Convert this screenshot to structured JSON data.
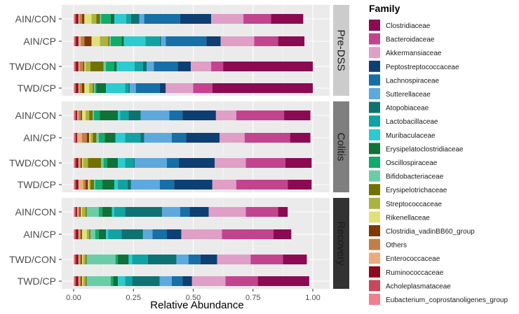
{
  "chart_data": {
    "type": "stacked_horizontal_bar",
    "xlabel": "Relative Abundance",
    "xlim": [
      0,
      1
    ],
    "xticks": [
      "0.00",
      "0.25",
      "0.50",
      "0.75",
      "1.00"
    ],
    "legend_title": "Family",
    "families": [
      {
        "name": "Clostridiaceae",
        "color": "#8C0A52"
      },
      {
        "name": "Bacteroidaceae",
        "color": "#C2448F"
      },
      {
        "name": "Akkermansiaceae",
        "color": "#DF9FC6"
      },
      {
        "name": "Peptostreptococcaceae",
        "color": "#0D3F73"
      },
      {
        "name": "Lachnospiraceae",
        "color": "#166FA6"
      },
      {
        "name": "Sutterellaceae",
        "color": "#5DA9DE"
      },
      {
        "name": "Atopobiaceae",
        "color": "#0F7272"
      },
      {
        "name": "Lactobacillaceae",
        "color": "#11A3A1"
      },
      {
        "name": "Muribaculaceae",
        "color": "#2CCBD0"
      },
      {
        "name": "Erysipelatoclostridiaceae",
        "color": "#0E7239"
      },
      {
        "name": "Oscillospiraceae",
        "color": "#11AB6B"
      },
      {
        "name": "Bifidobacteriaceae",
        "color": "#6BCDA7"
      },
      {
        "name": "Erysipelotrichaceae",
        "color": "#727202"
      },
      {
        "name": "Streptococcaceae",
        "color": "#ABB33F"
      },
      {
        "name": "Rikenellaceae",
        "color": "#E1E17A"
      },
      {
        "name": "Clostridia_vadinBB60_group",
        "color": "#7F3A04"
      },
      {
        "name": "Others",
        "color": "#C17E48"
      },
      {
        "name": "Enterococcaceae",
        "color": "#EBAB7E"
      },
      {
        "name": "Ruminococcaceae",
        "color": "#8A0C1E"
      },
      {
        "name": "Acholeplasmataceae",
        "color": "#C6485B"
      },
      {
        "name": "Eubacterium_coprostanoligenes_group",
        "color": "#EF808E"
      }
    ],
    "stack_order": [
      "Eubacterium_coprostanoligenes_group",
      "Acholeplasmataceae",
      "Ruminococcaceae",
      "Enterococcaceae",
      "Others",
      "Clostridia_vadinBB60_group",
      "Rikenellaceae",
      "Streptococcaceae",
      "Erysipelotrichaceae",
      "Bifidobacteriaceae",
      "Oscillospiraceae",
      "Erysipelatoclostridiaceae",
      "Muribaculaceae",
      "Lactobacillaceae",
      "Atopobiaceae",
      "Sutterellaceae",
      "Lachnospiraceae",
      "Peptostreptococcaceae",
      "Akkermansiaceae",
      "Bacteroidaceae",
      "Clostridiaceae"
    ],
    "panels": [
      {
        "strip": "Pre-DSS",
        "samples": [
          {
            "label": "AIN/CON",
            "values": {
              "Eubacterium_coprostanoligenes_group": 0.005,
              "Acholeplasmataceae": 0.005,
              "Ruminococcaceae": 0.01,
              "Enterococcaceae": 0.005,
              "Others": 0.01,
              "Clostridia_vadinBB60_group": 0.01,
              "Rikenellaceae": 0.03,
              "Streptococcaceae": 0.02,
              "Erysipelotrichaceae": 0.015,
              "Bifidobacteriaceae": 0.005,
              "Oscillospiraceae": 0.04,
              "Erysipelatoclostridiaceae": 0.015,
              "Muribaculaceae": 0.05,
              "Lactobacillaceae": 0.02,
              "Atopobiaceae": 0.035,
              "Sutterellaceae": 0.02,
              "Lachnospiraceae": 0.15,
              "Peptostreptococcaceae": 0.13,
              "Akkermansiaceae": 0.135,
              "Bacteroidaceae": 0.115,
              "Clostridiaceae": 0.135
            }
          },
          {
            "label": "AIN/CP",
            "values": {
              "Eubacterium_coprostanoligenes_group": 0.005,
              "Acholeplasmataceae": 0.005,
              "Ruminococcaceae": 0.01,
              "Enterococcaceae": 0.01,
              "Others": 0.015,
              "Clostridia_vadinBB60_group": 0.03,
              "Rikenellaceae": 0.035,
              "Streptococcaceae": 0.035,
              "Erysipelotrichaceae": 0.005,
              "Bifidobacteriaceae": 0.005,
              "Oscillospiraceae": 0.045,
              "Erysipelatoclostridiaceae": 0.01,
              "Muribaculaceae": 0.09,
              "Lactobacillaceae": 0.06,
              "Atopobiaceae": 0.005,
              "Sutterellaceae": 0.02,
              "Lachnospiraceae": 0.17,
              "Peptostreptococcaceae": 0.06,
              "Akkermansiaceae": 0.14,
              "Bacteroidaceae": 0.1,
              "Clostridiaceae": 0.11
            }
          },
          {
            "label": "TWD/CON",
            "values": {
              "Eubacterium_coprostanoligenes_group": 0.005,
              "Acholeplasmataceae": 0.005,
              "Ruminococcaceae": 0.01,
              "Enterococcaceae": 0.005,
              "Others": 0.015,
              "Clostridia_vadinBB60_group": 0.005,
              "Rikenellaceae": 0.005,
              "Streptococcaceae": 0.02,
              "Erysipelotrichaceae": 0.055,
              "Bifidobacteriaceae": 0.01,
              "Oscillospiraceae": 0.035,
              "Erysipelatoclostridiaceae": 0.01,
              "Muribaculaceae": 0.075,
              "Lactobacillaceae": 0.035,
              "Atopobiaceae": 0.015,
              "Sutterellaceae": 0.03,
              "Lachnospiraceae": 0.1,
              "Peptostreptococcaceae": 0.055,
              "Akkermansiaceae": 0.085,
              "Bacteroidaceae": 0.05,
              "Clostridiaceae": 0.375
            }
          },
          {
            "label": "TWD/CP",
            "values": {
              "Eubacterium_coprostanoligenes_group": 0.005,
              "Acholeplasmataceae": 0.005,
              "Ruminococcaceae": 0.01,
              "Enterococcaceae": 0.005,
              "Others": 0.01,
              "Clostridia_vadinBB60_group": 0.01,
              "Rikenellaceae": 0.02,
              "Streptococcaceae": 0.015,
              "Erysipelotrichaceae": 0.005,
              "Bifidobacteriaceae": 0.005,
              "Oscillospiraceae": 0.005,
              "Erysipelatoclostridiaceae": 0.04,
              "Muribaculaceae": 0.08,
              "Lactobacillaceae": 0.015,
              "Atopobiaceae": 0.005,
              "Sutterellaceae": 0.025,
              "Lachnospiraceae": 0.1,
              "Peptostreptococcaceae": 0.025,
              "Akkermansiaceae": 0.115,
              "Bacteroidaceae": 0.08,
              "Clostridiaceae": 0.42
            }
          }
        ]
      },
      {
        "strip": "Colitis",
        "samples": [
          {
            "label": "AIN/CON",
            "values": {
              "Eubacterium_coprostanoligenes_group": 0.005,
              "Acholeplasmataceae": 0.005,
              "Ruminococcaceae": 0.005,
              "Enterococcaceae": 0.005,
              "Others": 0.01,
              "Clostridia_vadinBB60_group": 0.005,
              "Rikenellaceae": 0.015,
              "Streptococcaceae": 0.015,
              "Erysipelotrichaceae": 0.015,
              "Bifidobacteriaceae": 0.005,
              "Oscillospiraceae": 0.025,
              "Erysipelatoclostridiaceae": 0.075,
              "Muribaculaceae": 0.01,
              "Lactobacillaceae": 0.035,
              "Atopobiaceae": 0.05,
              "Sutterellaceae": 0.12,
              "Lachnospiraceae": 0.055,
              "Peptostreptococcaceae": 0.14,
              "Akkermansiaceae": 0.085,
              "Bacteroidaceae": 0.2,
              "Clostridiaceae": 0.11
            }
          },
          {
            "label": "AIN/CP",
            "values": {
              "Eubacterium_coprostanoligenes_group": 0.005,
              "Acholeplasmataceae": 0.005,
              "Ruminococcaceae": 0.005,
              "Enterococcaceae": 0.02,
              "Others": 0.02,
              "Clostridia_vadinBB60_group": 0.01,
              "Rikenellaceae": 0.005,
              "Streptococcaceae": 0.01,
              "Erysipelotrichaceae": 0.015,
              "Bifidobacteriaceae": 0.01,
              "Oscillospiraceae": 0.025,
              "Erysipelatoclostridiaceae": 0.045,
              "Muribaculaceae": 0.04,
              "Lactobacillaceae": 0.065,
              "Atopobiaceae": 0.015,
              "Sutterellaceae": 0.115,
              "Lachnospiraceae": 0.06,
              "Peptostreptococcaceae": 0.14,
              "Akkermansiaceae": 0.105,
              "Bacteroidaceae": 0.19,
              "Clostridiaceae": 0.085
            }
          },
          {
            "label": "TWD/CON",
            "values": {
              "Eubacterium_coprostanoligenes_group": 0.005,
              "Acholeplasmataceae": 0.005,
              "Ruminococcaceae": 0.01,
              "Enterococcaceae": 0.005,
              "Others": 0.005,
              "Clostridia_vadinBB60_group": 0.005,
              "Rikenellaceae": 0.005,
              "Streptococcaceae": 0.02,
              "Erysipelotrichaceae": 0.055,
              "Bifidobacteriaceae": 0.01,
              "Oscillospiraceae": 0.015,
              "Erysipelatoclostridiaceae": 0.045,
              "Muribaculaceae": 0.03,
              "Lactobacillaceae": 0.035,
              "Atopobiaceae": 0.005,
              "Sutterellaceae": 0.135,
              "Lachnospiraceae": 0.05,
              "Peptostreptococcaceae": 0.15,
              "Akkermansiaceae": 0.13,
              "Bacteroidaceae": 0.165,
              "Clostridiaceae": 0.11
            }
          },
          {
            "label": "TWD/CP",
            "values": {
              "Eubacterium_coprostanoligenes_group": 0.005,
              "Acholeplasmataceae": 0.005,
              "Ruminococcaceae": 0.01,
              "Enterococcaceae": 0.02,
              "Others": 0.01,
              "Clostridia_vadinBB60_group": 0.01,
              "Rikenellaceae": 0.005,
              "Streptococcaceae": 0.005,
              "Erysipelotrichaceae": 0.015,
              "Bifidobacteriaceae": 0.005,
              "Oscillospiraceae": 0.03,
              "Erysipelatoclostridiaceae": 0.05,
              "Muribaculaceae": 0.015,
              "Lactobacillaceae": 0.04,
              "Atopobiaceae": 0.015,
              "Sutterellaceae": 0.12,
              "Lachnospiraceae": 0.06,
              "Peptostreptococcaceae": 0.16,
              "Akkermansiaceae": 0.1,
              "Bacteroidaceae": 0.215,
              "Clostridiaceae": 0.1
            }
          }
        ]
      },
      {
        "strip": "Recovery",
        "samples": [
          {
            "label": "AIN/CON",
            "values": {
              "Eubacterium_coprostanoligenes_group": 0.005,
              "Acholeplasmataceae": 0.005,
              "Ruminococcaceae": 0.005,
              "Enterococcaceae": 0.005,
              "Others": 0.005,
              "Clostridia_vadinBB60_group": 0.005,
              "Rikenellaceae": 0.005,
              "Streptococcaceae": 0.015,
              "Erysipelotrichaceae": 0.005,
              "Bifidobacteriaceae": 0.05,
              "Oscillospiraceae": 0.015,
              "Erysipelatoclostridiaceae": 0.04,
              "Muribaculaceae": 0.01,
              "Lactobacillaceae": 0.045,
              "Atopobiaceae": 0.155,
              "Sutterellaceae": 0.075,
              "Lachnospiraceae": 0.04,
              "Peptostreptococcaceae": 0.08,
              "Akkermansiaceae": 0.155,
              "Bacteroidaceae": 0.135,
              "Clostridiaceae": 0.04
            }
          },
          {
            "label": "AIN/CP",
            "values": {
              "Eubacterium_coprostanoligenes_group": 0.005,
              "Acholeplasmataceae": 0.005,
              "Ruminococcaceae": 0.01,
              "Enterococcaceae": 0.005,
              "Others": 0.005,
              "Clostridia_vadinBB60_group": 0.005,
              "Rikenellaceae": 0.02,
              "Streptococcaceae": 0.01,
              "Erysipelotrichaceae": 0.005,
              "Bifidobacteriaceae": 0.02,
              "Oscillospiraceae": 0.015,
              "Erysipelatoclostridiaceae": 0.03,
              "Muribaculaceae": 0.01,
              "Lactobacillaceae": 0.055,
              "Atopobiaceae": 0.09,
              "Sutterellaceae": 0.04,
              "Lachnospiraceae": 0.06,
              "Peptostreptococcaceae": 0.06,
              "Akkermansiaceae": 0.17,
              "Bacteroidaceae": 0.215,
              "Clostridiaceae": 0.075
            }
          },
          {
            "label": "TWD/CON",
            "values": {
              "Eubacterium_coprostanoligenes_group": 0.005,
              "Acholeplasmataceae": 0.005,
              "Ruminococcaceae": 0.01,
              "Enterococcaceae": 0.005,
              "Others": 0.005,
              "Clostridia_vadinBB60_group": 0.005,
              "Rikenellaceae": 0.005,
              "Streptococcaceae": 0.01,
              "Erysipelotrichaceae": 0.005,
              "Bifidobacteriaceae": 0.12,
              "Oscillospiraceae": 0.01,
              "Erysipelatoclostridiaceae": 0.045,
              "Muribaculaceae": 0.015,
              "Lactobacillaceae": 0.065,
              "Atopobiaceae": 0.12,
              "Sutterellaceae": 0.05,
              "Lachnospiraceae": 0.05,
              "Peptostreptococcaceae": 0.07,
              "Akkermansiaceae": 0.14,
              "Bacteroidaceae": 0.135,
              "Clostridiaceae": 0.1
            }
          },
          {
            "label": "TWD/CP",
            "values": {
              "Eubacterium_coprostanoligenes_group": 0.005,
              "Acholeplasmataceae": 0.005,
              "Ruminococcaceae": 0.01,
              "Enterococcaceae": 0.005,
              "Others": 0.005,
              "Clostridia_vadinBB60_group": 0.005,
              "Rikenellaceae": 0.005,
              "Streptococcaceae": 0.01,
              "Erysipelotrichaceae": 0.005,
              "Bifidobacteriaceae": 0.1,
              "Oscillospiraceae": 0.01,
              "Erysipelatoclostridiaceae": 0.02,
              "Muribaculaceae": 0.03,
              "Lactobacillaceae": 0.03,
              "Atopobiaceae": 0.115,
              "Sutterellaceae": 0.05,
              "Lachnospiraceae": 0.045,
              "Peptostreptococcaceae": 0.04,
              "Akkermansiaceae": 0.14,
              "Bacteroidaceae": 0.135,
              "Clostridiaceae": 0.215
            }
          }
        ]
      }
    ]
  }
}
